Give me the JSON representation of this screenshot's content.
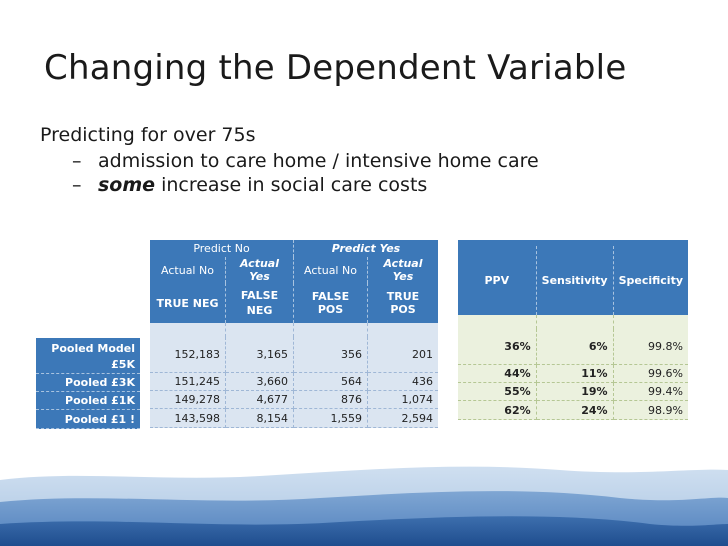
{
  "slide": {
    "title": "Changing the Dependent Variable",
    "bullet_main": "Predicting for over 75s",
    "sub1_dash": "–",
    "sub1_text": "admission to care home / intensive home care",
    "sub2_dash": "–",
    "sub2_em": "some",
    "sub2_text": " increase in social care costs"
  },
  "confusion": {
    "group_predict_no": "Predict No",
    "group_predict_yes": "Predict Yes",
    "sub_headers": [
      "Actual No",
      "Actual Yes",
      "Actual No",
      "Actual Yes"
    ],
    "codes": [
      "TRUE NEG",
      "FALSE NEG",
      "FALSE POS",
      "TRUE POS"
    ]
  },
  "metrics_headers": [
    "PPV",
    "Sensitivity",
    "Specificity"
  ],
  "rows": [
    {
      "label": "Pooled Model £5K",
      "label_line1": "Pooled Model",
      "label_line2": "£5K",
      "values": [
        "152,183",
        "3,165",
        "356",
        "201"
      ],
      "ppv": "36%",
      "sens": "6%",
      "spec": "99.8%"
    },
    {
      "label": "Pooled £3K",
      "values": [
        "151,245",
        "3,660",
        "564",
        "436"
      ],
      "ppv": "44%",
      "sens": "11%",
      "spec": "99.6%"
    },
    {
      "label": "Pooled £1K",
      "values": [
        "149,278",
        "4,677",
        "876",
        "1,074"
      ],
      "ppv": "55%",
      "sens": "19%",
      "spec": "99.4%"
    },
    {
      "label": "Pooled £1 !",
      "values": [
        "143,598",
        "8,154",
        "1,559",
        "2,594"
      ],
      "ppv": "62%",
      "sens": "24%",
      "spec": "98.9%"
    }
  ],
  "colors": {
    "header_blue": "#3c78b8",
    "cell_blue": "#dbe5f1",
    "cell_green": "#ebf1de"
  }
}
